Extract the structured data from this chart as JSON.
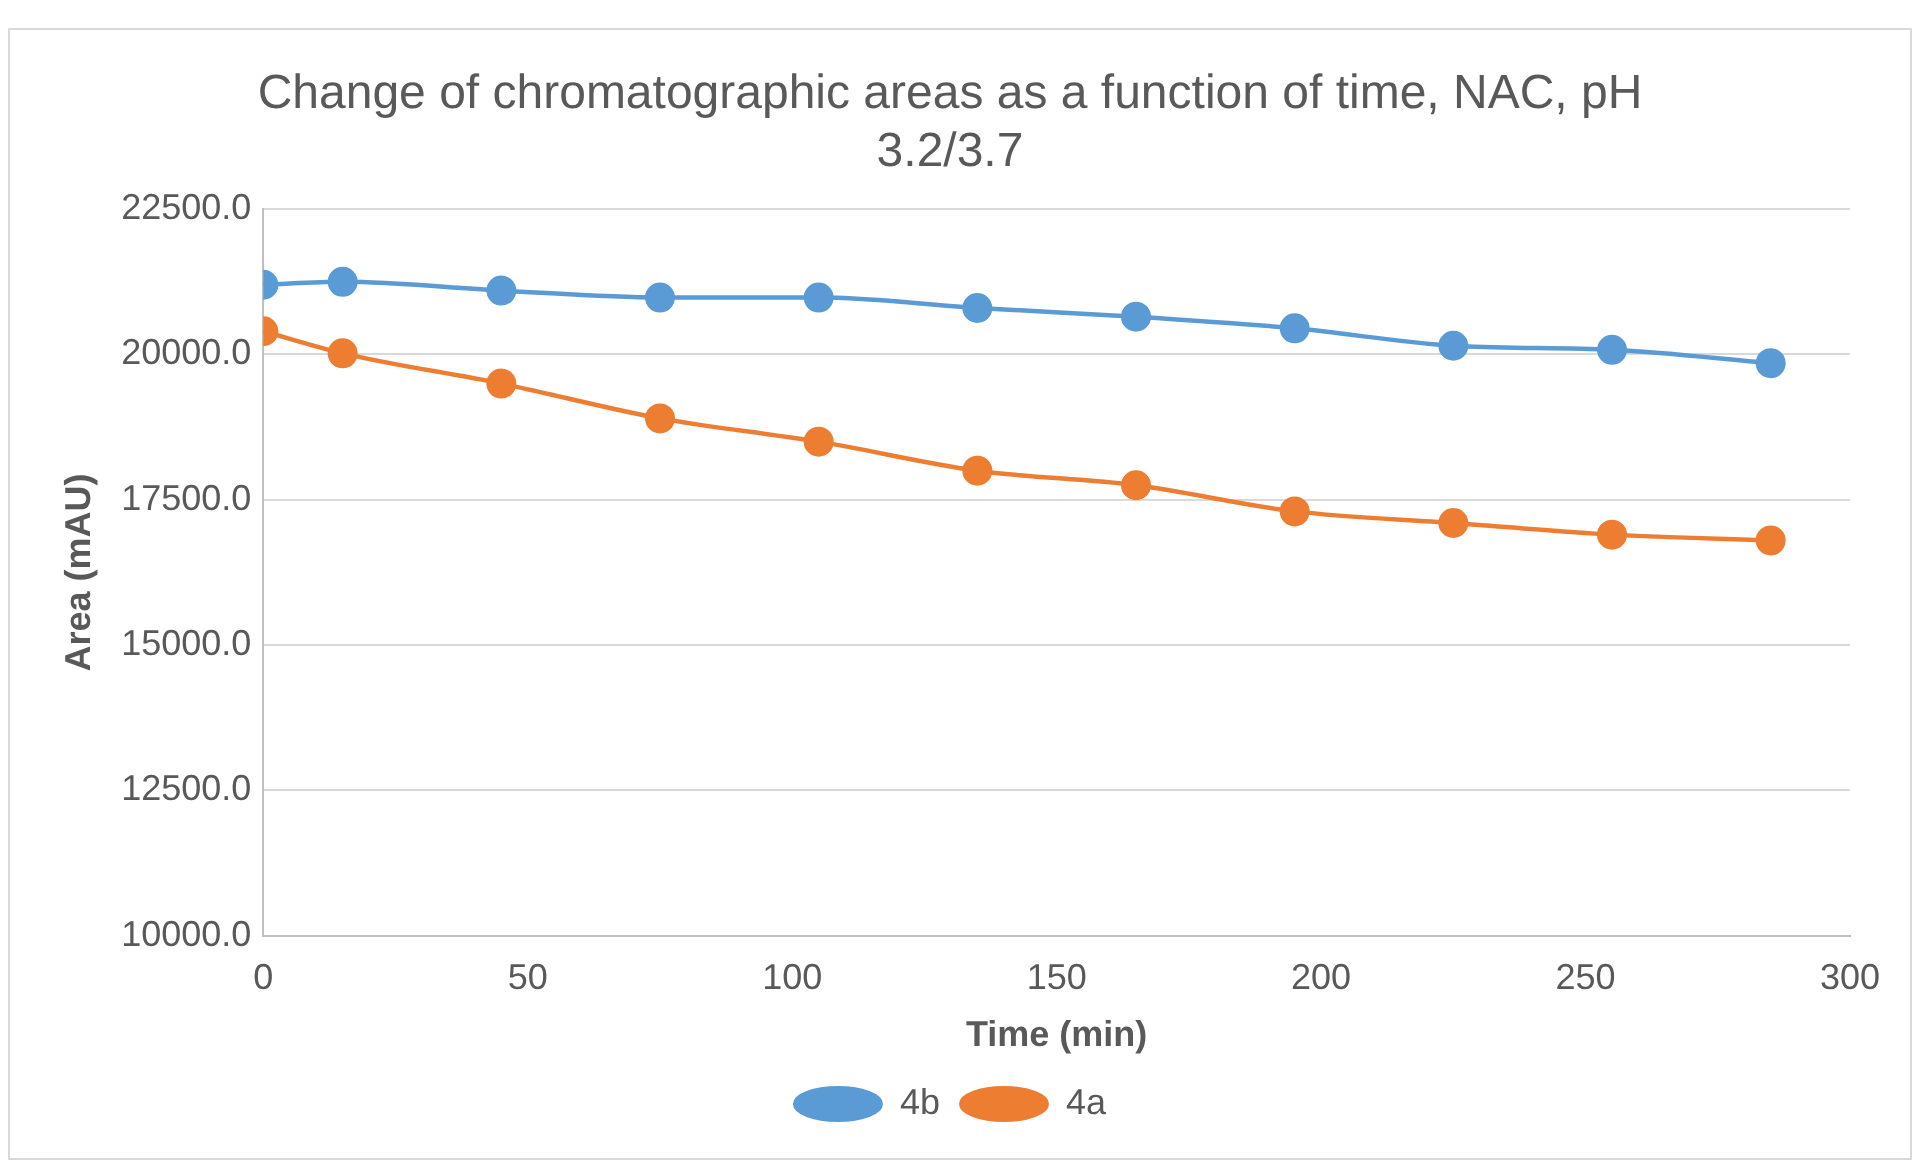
{
  "chart_data": {
    "type": "line",
    "title": "Change of chromatographic areas as a function of time, NAC, pH 3.2/3.7",
    "xlabel": "Time (min)",
    "ylabel": "Area (mAU)",
    "x": [
      0,
      15,
      45,
      75,
      105,
      135,
      165,
      195,
      225,
      255,
      285
    ],
    "series": [
      {
        "name": "4b",
        "color": "#5b9bd5",
        "values": [
          21200,
          21250,
          21100,
          20980,
          20980,
          20800,
          20650,
          20450,
          20150,
          20080,
          19850
        ]
      },
      {
        "name": "4a",
        "color": "#ed7d31",
        "values": [
          20400,
          20020,
          19500,
          18900,
          18500,
          18000,
          17750,
          17300,
          17100,
          16900,
          16800
        ]
      }
    ],
    "xlim": [
      0,
      300
    ],
    "xticks": [
      0,
      50,
      100,
      150,
      200,
      250,
      300
    ],
    "ylim": [
      10000,
      22500
    ],
    "yticks": [
      {
        "value": 10000,
        "label": "10000.0"
      },
      {
        "value": 12500,
        "label": "12500.0"
      },
      {
        "value": 15000,
        "label": "15000.0"
      },
      {
        "value": 17500,
        "label": "17500.0"
      },
      {
        "value": 20000,
        "label": "20000.0"
      },
      {
        "value": 22500,
        "label": "22500.0"
      }
    ],
    "grid": "y",
    "legend": "bottom",
    "marker": "circle",
    "line_style": "solid"
  }
}
